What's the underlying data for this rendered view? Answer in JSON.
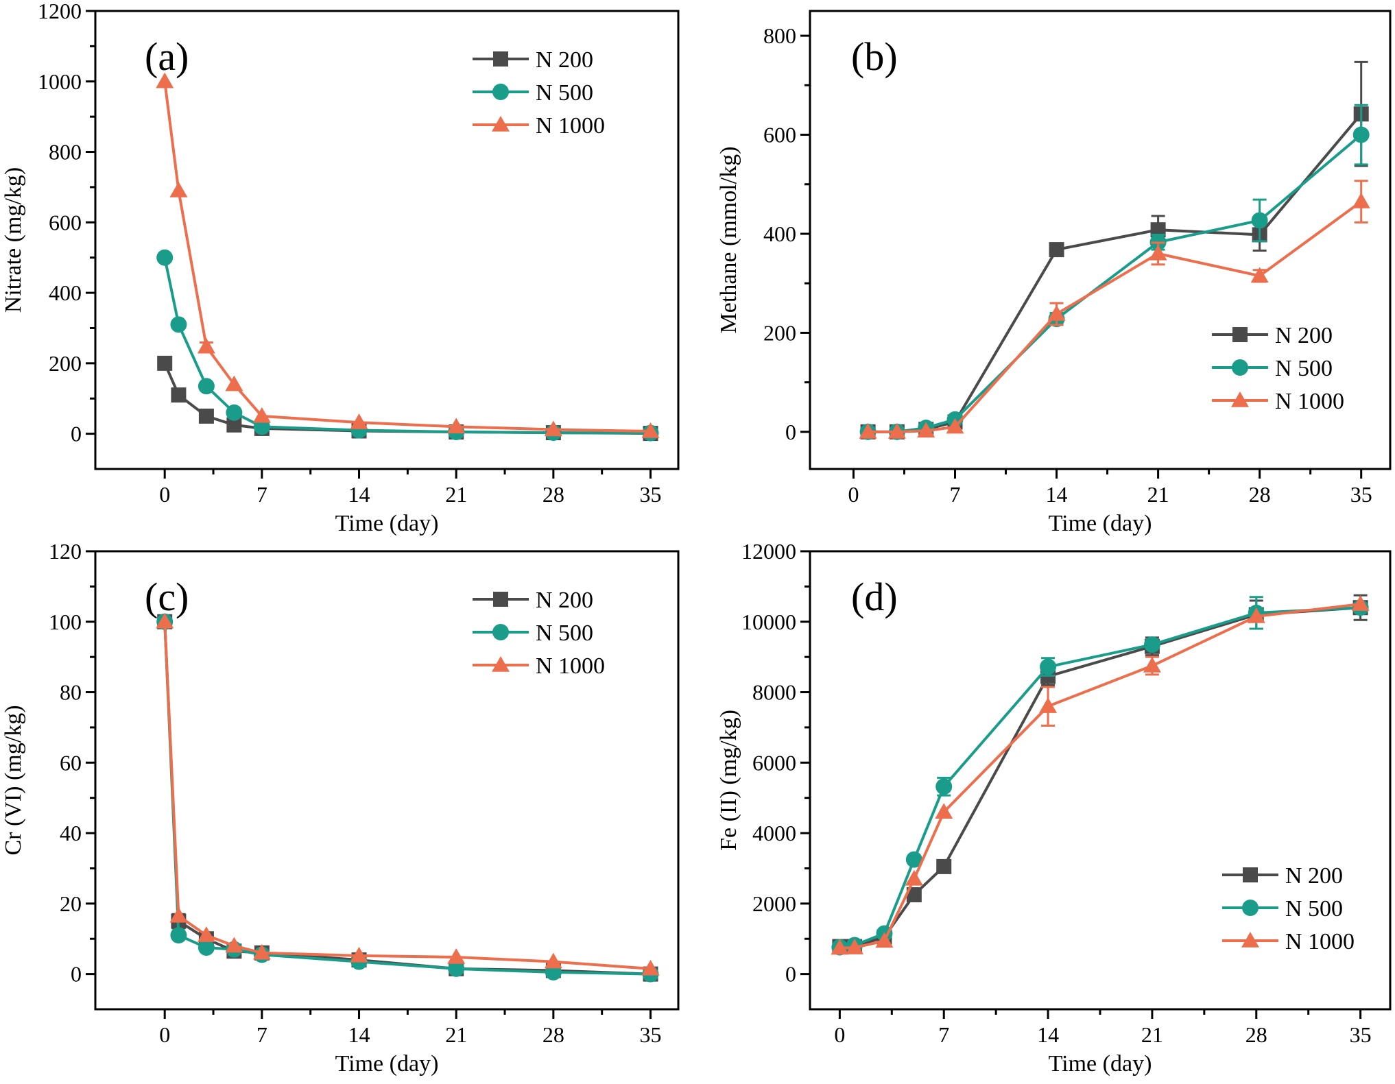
{
  "series_styles": [
    {
      "name": "N 200",
      "color": "#4a4a4a",
      "marker": "square"
    },
    {
      "name": "N 500",
      "color": "#199d8a",
      "marker": "circle"
    },
    {
      "name": "N 1000",
      "color": "#ec6e4c",
      "marker": "triangle"
    }
  ],
  "chart_data": [
    {
      "type": "line",
      "panel_label": "(a)",
      "xlabel": "Time (day)",
      "ylabel": "Nitrate (mg/kg)",
      "xlim": [
        -5,
        37
      ],
      "ylim": [
        -100,
        1200
      ],
      "xticks": [
        0,
        7,
        14,
        21,
        28,
        35
      ],
      "yticks": [
        0,
        200,
        400,
        600,
        800,
        1000,
        1200
      ],
      "legend": "top-right",
      "series": [
        {
          "name": "N 200",
          "x": [
            0,
            1,
            3,
            5,
            7,
            14,
            21,
            28,
            35
          ],
          "values": [
            200,
            110,
            50,
            25,
            15,
            8,
            5,
            3,
            1
          ],
          "errors": [
            0,
            0,
            0,
            0,
            0,
            0,
            0,
            0,
            0
          ]
        },
        {
          "name": "N 500",
          "x": [
            0,
            1,
            3,
            5,
            7,
            14,
            21,
            28,
            35
          ],
          "values": [
            500,
            310,
            135,
            60,
            20,
            10,
            5,
            3,
            2
          ],
          "errors": [
            0,
            0,
            0,
            0,
            0,
            0,
            0,
            0,
            0
          ]
        },
        {
          "name": "N 1000",
          "x": [
            0,
            1,
            3,
            5,
            7,
            14,
            21,
            28,
            35
          ],
          "values": [
            1000,
            690,
            247,
            140,
            50,
            32,
            20,
            12,
            7
          ],
          "errors": [
            0,
            0,
            12,
            0,
            0,
            0,
            0,
            0,
            0
          ]
        }
      ]
    },
    {
      "type": "line",
      "panel_label": "(b)",
      "xlabel": "Time (day)",
      "ylabel": "Methane (mmol/kg)",
      "xlim": [
        -3,
        37
      ],
      "ylim": [
        -75,
        850
      ],
      "xticks": [
        0,
        7,
        14,
        21,
        28,
        35
      ],
      "yticks": [
        0,
        200,
        400,
        600,
        800
      ],
      "legend": "bottom-right",
      "series": [
        {
          "name": "N 200",
          "x": [
            1,
            3,
            5,
            7,
            14,
            21,
            28,
            35
          ],
          "values": [
            0,
            0,
            5,
            20,
            368,
            408,
            398,
            642
          ],
          "errors": [
            0,
            0,
            0,
            0,
            0,
            28,
            32,
            105
          ]
        },
        {
          "name": "N 500",
          "x": [
            1,
            3,
            5,
            7,
            14,
            21,
            28,
            35
          ],
          "values": [
            0,
            0,
            8,
            25,
            228,
            383,
            427,
            600
          ],
          "errors": [
            0,
            0,
            0,
            0,
            12,
            15,
            42,
            60
          ]
        },
        {
          "name": "N 1000",
          "x": [
            1,
            3,
            5,
            7,
            14,
            21,
            28,
            35
          ],
          "values": [
            0,
            0,
            2,
            10,
            238,
            360,
            315,
            465
          ],
          "errors": [
            0,
            0,
            0,
            0,
            22,
            22,
            12,
            42
          ]
        }
      ]
    },
    {
      "type": "line",
      "panel_label": "(c)",
      "xlabel": "Time (day)",
      "ylabel": "Cr (VI) (mg/kg)",
      "xlim": [
        -5,
        37
      ],
      "ylim": [
        -10,
        120
      ],
      "xticks": [
        0,
        7,
        14,
        21,
        28,
        35
      ],
      "yticks": [
        0,
        20,
        40,
        60,
        80,
        100,
        120
      ],
      "legend": "top-right",
      "series": [
        {
          "name": "N 200",
          "x": [
            0,
            1,
            3,
            5,
            7,
            14,
            21,
            28,
            35
          ],
          "values": [
            100,
            15,
            10,
            6.5,
            6,
            4,
            1.5,
            1,
            0
          ],
          "errors": [
            0,
            2,
            0,
            0,
            0,
            0,
            0,
            0,
            0
          ]
        },
        {
          "name": "N 500",
          "x": [
            0,
            1,
            3,
            5,
            7,
            14,
            21,
            28,
            35
          ],
          "values": [
            100,
            11,
            7.5,
            7,
            5.5,
            3.5,
            1.5,
            0.5,
            0
          ],
          "errors": [
            0,
            0,
            0,
            0,
            0,
            0,
            0,
            0,
            0
          ]
        },
        {
          "name": "N 1000",
          "x": [
            0,
            1,
            3,
            5,
            7,
            14,
            21,
            28,
            35
          ],
          "values": [
            100,
            16.5,
            11,
            8,
            6,
            5.2,
            4.8,
            3.5,
            1.5
          ],
          "errors": [
            0,
            0,
            0,
            0,
            0,
            0,
            0,
            0,
            0
          ]
        }
      ]
    },
    {
      "type": "line",
      "panel_label": "(d)",
      "xlabel": "Time (day)",
      "ylabel": "Fe (II) (mg/kg)",
      "xlim": [
        -2,
        37
      ],
      "ylim": [
        -1000,
        12000
      ],
      "xticks": [
        0,
        7,
        14,
        21,
        28,
        35
      ],
      "yticks": [
        0,
        2000,
        4000,
        6000,
        8000,
        10000,
        12000
      ],
      "legend": "bottom-right",
      "series": [
        {
          "name": "N 200",
          "x": [
            0,
            1,
            3,
            5,
            7,
            14,
            21,
            28,
            35
          ],
          "values": [
            780,
            780,
            1050,
            2250,
            3050,
            8450,
            9300,
            10200,
            10400
          ],
          "errors": [
            0,
            0,
            0,
            0,
            0,
            250,
            250,
            400,
            350
          ]
        },
        {
          "name": "N 500",
          "x": [
            0,
            1,
            3,
            5,
            7,
            14,
            21,
            28,
            35
          ],
          "values": [
            760,
            820,
            1150,
            3250,
            5320,
            8720,
            9350,
            10250,
            10400
          ],
          "errors": [
            0,
            0,
            0,
            0,
            250,
            250,
            0,
            450,
            0
          ]
        },
        {
          "name": "N 1000",
          "x": [
            0,
            1,
            3,
            5,
            7,
            14,
            21,
            28,
            35
          ],
          "values": [
            740,
            750,
            940,
            2700,
            4600,
            7600,
            8750,
            10150,
            10500
          ],
          "errors": [
            0,
            0,
            0,
            0,
            0,
            550,
            250,
            0,
            0
          ]
        }
      ]
    }
  ]
}
